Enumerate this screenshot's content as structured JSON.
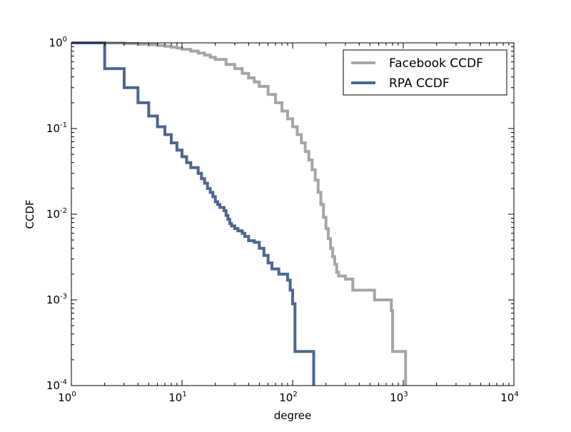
{
  "chart_data": {
    "type": "line",
    "title": "",
    "xlabel": "degree",
    "ylabel": "CCDF",
    "xscale": "log",
    "yscale": "log",
    "xlim": [
      1,
      10000
    ],
    "ylim": [
      0.0001,
      1
    ],
    "grid": false,
    "legend_position": "top-right",
    "x_ticks": [
      {
        "base": "10",
        "exp": "0"
      },
      {
        "base": "10",
        "exp": "1"
      },
      {
        "base": "10",
        "exp": "2"
      },
      {
        "base": "10",
        "exp": "3"
      },
      {
        "base": "10",
        "exp": "4"
      }
    ],
    "y_ticks": [
      {
        "base": "10",
        "exp": "0"
      },
      {
        "base": "10",
        "exp": "-1"
      },
      {
        "base": "10",
        "exp": "-2"
      },
      {
        "base": "10",
        "exp": "-3"
      },
      {
        "base": "10",
        "exp": "-4"
      }
    ],
    "series": [
      {
        "name": "Facebook CCDF",
        "color": "#a6a6a6",
        "step": true,
        "points": [
          [
            1,
            1.0
          ],
          [
            2,
            0.995
          ],
          [
            3,
            0.98
          ],
          [
            4,
            0.965
          ],
          [
            5,
            0.95
          ],
          [
            6,
            0.93
          ],
          [
            7,
            0.91
          ],
          [
            8,
            0.89
          ],
          [
            9,
            0.87
          ],
          [
            10,
            0.84
          ],
          [
            12,
            0.8
          ],
          [
            14,
            0.76
          ],
          [
            16,
            0.72
          ],
          [
            18,
            0.68
          ],
          [
            20,
            0.64
          ],
          [
            25,
            0.56
          ],
          [
            30,
            0.5
          ],
          [
            35,
            0.44
          ],
          [
            40,
            0.39
          ],
          [
            45,
            0.35
          ],
          [
            50,
            0.31
          ],
          [
            60,
            0.25
          ],
          [
            70,
            0.2
          ],
          [
            80,
            0.16
          ],
          [
            90,
            0.13
          ],
          [
            100,
            0.105
          ],
          [
            110,
            0.085
          ],
          [
            120,
            0.068
          ],
          [
            130,
            0.054
          ],
          [
            140,
            0.043
          ],
          [
            150,
            0.033
          ],
          [
            160,
            0.025
          ],
          [
            170,
            0.018
          ],
          [
            180,
            0.013
          ],
          [
            190,
            0.0092
          ],
          [
            200,
            0.0068
          ],
          [
            210,
            0.0052
          ],
          [
            220,
            0.004
          ],
          [
            230,
            0.0032
          ],
          [
            240,
            0.0026
          ],
          [
            250,
            0.0021
          ],
          [
            260,
            0.0019
          ],
          [
            300,
            0.00175
          ],
          [
            350,
            0.0013
          ],
          [
            550,
            0.001
          ],
          [
            780,
            0.00075
          ],
          [
            800,
            0.00025
          ],
          [
            1050,
            0.00025
          ],
          [
            1050,
            0.0001
          ]
        ]
      },
      {
        "name": "RPA CCDF",
        "color": "#4c6792",
        "step": true,
        "points": [
          [
            1,
            1.0
          ],
          [
            2,
            0.5
          ],
          [
            3,
            0.3
          ],
          [
            4,
            0.2
          ],
          [
            5,
            0.14
          ],
          [
            6,
            0.105
          ],
          [
            7,
            0.085
          ],
          [
            8,
            0.068
          ],
          [
            9,
            0.056
          ],
          [
            10,
            0.047
          ],
          [
            11,
            0.04
          ],
          [
            12,
            0.035
          ],
          [
            14,
            0.03
          ],
          [
            15,
            0.026
          ],
          [
            16,
            0.023
          ],
          [
            17,
            0.02
          ],
          [
            18,
            0.018
          ],
          [
            19,
            0.016
          ],
          [
            20,
            0.014
          ],
          [
            21,
            0.013
          ],
          [
            22,
            0.012
          ],
          [
            24,
            0.011
          ],
          [
            25,
            0.0097
          ],
          [
            26,
            0.0087
          ],
          [
            27,
            0.0078
          ],
          [
            28,
            0.0073
          ],
          [
            30,
            0.0068
          ],
          [
            32,
            0.0064
          ],
          [
            35,
            0.006
          ],
          [
            37,
            0.0055
          ],
          [
            40,
            0.0049
          ],
          [
            45,
            0.0047
          ],
          [
            50,
            0.004
          ],
          [
            55,
            0.0033
          ],
          [
            60,
            0.0027
          ],
          [
            65,
            0.0023
          ],
          [
            75,
            0.002
          ],
          [
            90,
            0.0017
          ],
          [
            95,
            0.0013
          ],
          [
            100,
            0.0009
          ],
          [
            105,
            0.0005
          ],
          [
            105,
            0.00025
          ],
          [
            155,
            0.00025
          ],
          [
            155,
            0.0001
          ]
        ]
      }
    ]
  }
}
